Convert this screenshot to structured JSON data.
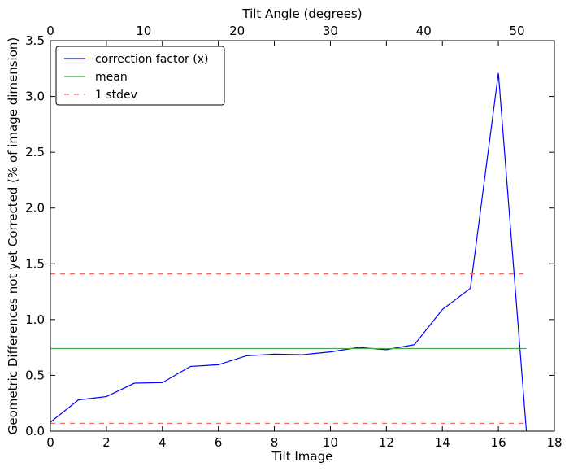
{
  "chart_data": {
    "type": "line",
    "xlabel": "Tilt Image",
    "ylabel": "Geometric Differences not yet Corrected (% of image dimension)",
    "top_xlabel": "Tilt Angle (degrees)",
    "xlim": [
      0,
      18
    ],
    "ylim": [
      0,
      3.5
    ],
    "top_xlim": [
      0,
      54
    ],
    "x_ticks": [
      0,
      2,
      4,
      6,
      8,
      10,
      12,
      14,
      16,
      18
    ],
    "y_ticks": [
      0.0,
      0.5,
      1.0,
      1.5,
      2.0,
      2.5,
      3.0,
      3.5
    ],
    "y_tick_labels": [
      "0.0",
      "0.5",
      "1.0",
      "1.5",
      "2.0",
      "2.5",
      "3.0",
      "3.5"
    ],
    "top_x_ticks": [
      0,
      10,
      20,
      30,
      40,
      50
    ],
    "legend_position": "upper-left",
    "grid": false,
    "series": [
      {
        "name": "correction factor (x)",
        "style": "solid",
        "color": "#0000ff",
        "x": [
          0,
          1,
          2,
          3,
          4,
          5,
          6,
          7,
          8,
          9,
          10,
          11,
          12,
          13,
          14,
          15,
          16,
          17
        ],
        "values": [
          0.08,
          0.28,
          0.31,
          0.43,
          0.435,
          0.58,
          0.595,
          0.675,
          0.69,
          0.685,
          0.71,
          0.75,
          0.73,
          0.775,
          1.09,
          1.28,
          3.21,
          0.0
        ]
      },
      {
        "name": "mean",
        "style": "solid",
        "color": "#4aa84a",
        "x": [
          0,
          17
        ],
        "values": [
          0.74,
          0.74
        ]
      },
      {
        "name": "1 stdev",
        "style": "dashed",
        "color": "#ff6666",
        "x": [
          0,
          17
        ],
        "values": [
          1.41,
          1.41
        ]
      },
      {
        "style": "dashed",
        "color": "#ff6666",
        "x": [
          0,
          17
        ],
        "values": [
          0.07,
          0.07
        ]
      }
    ]
  }
}
